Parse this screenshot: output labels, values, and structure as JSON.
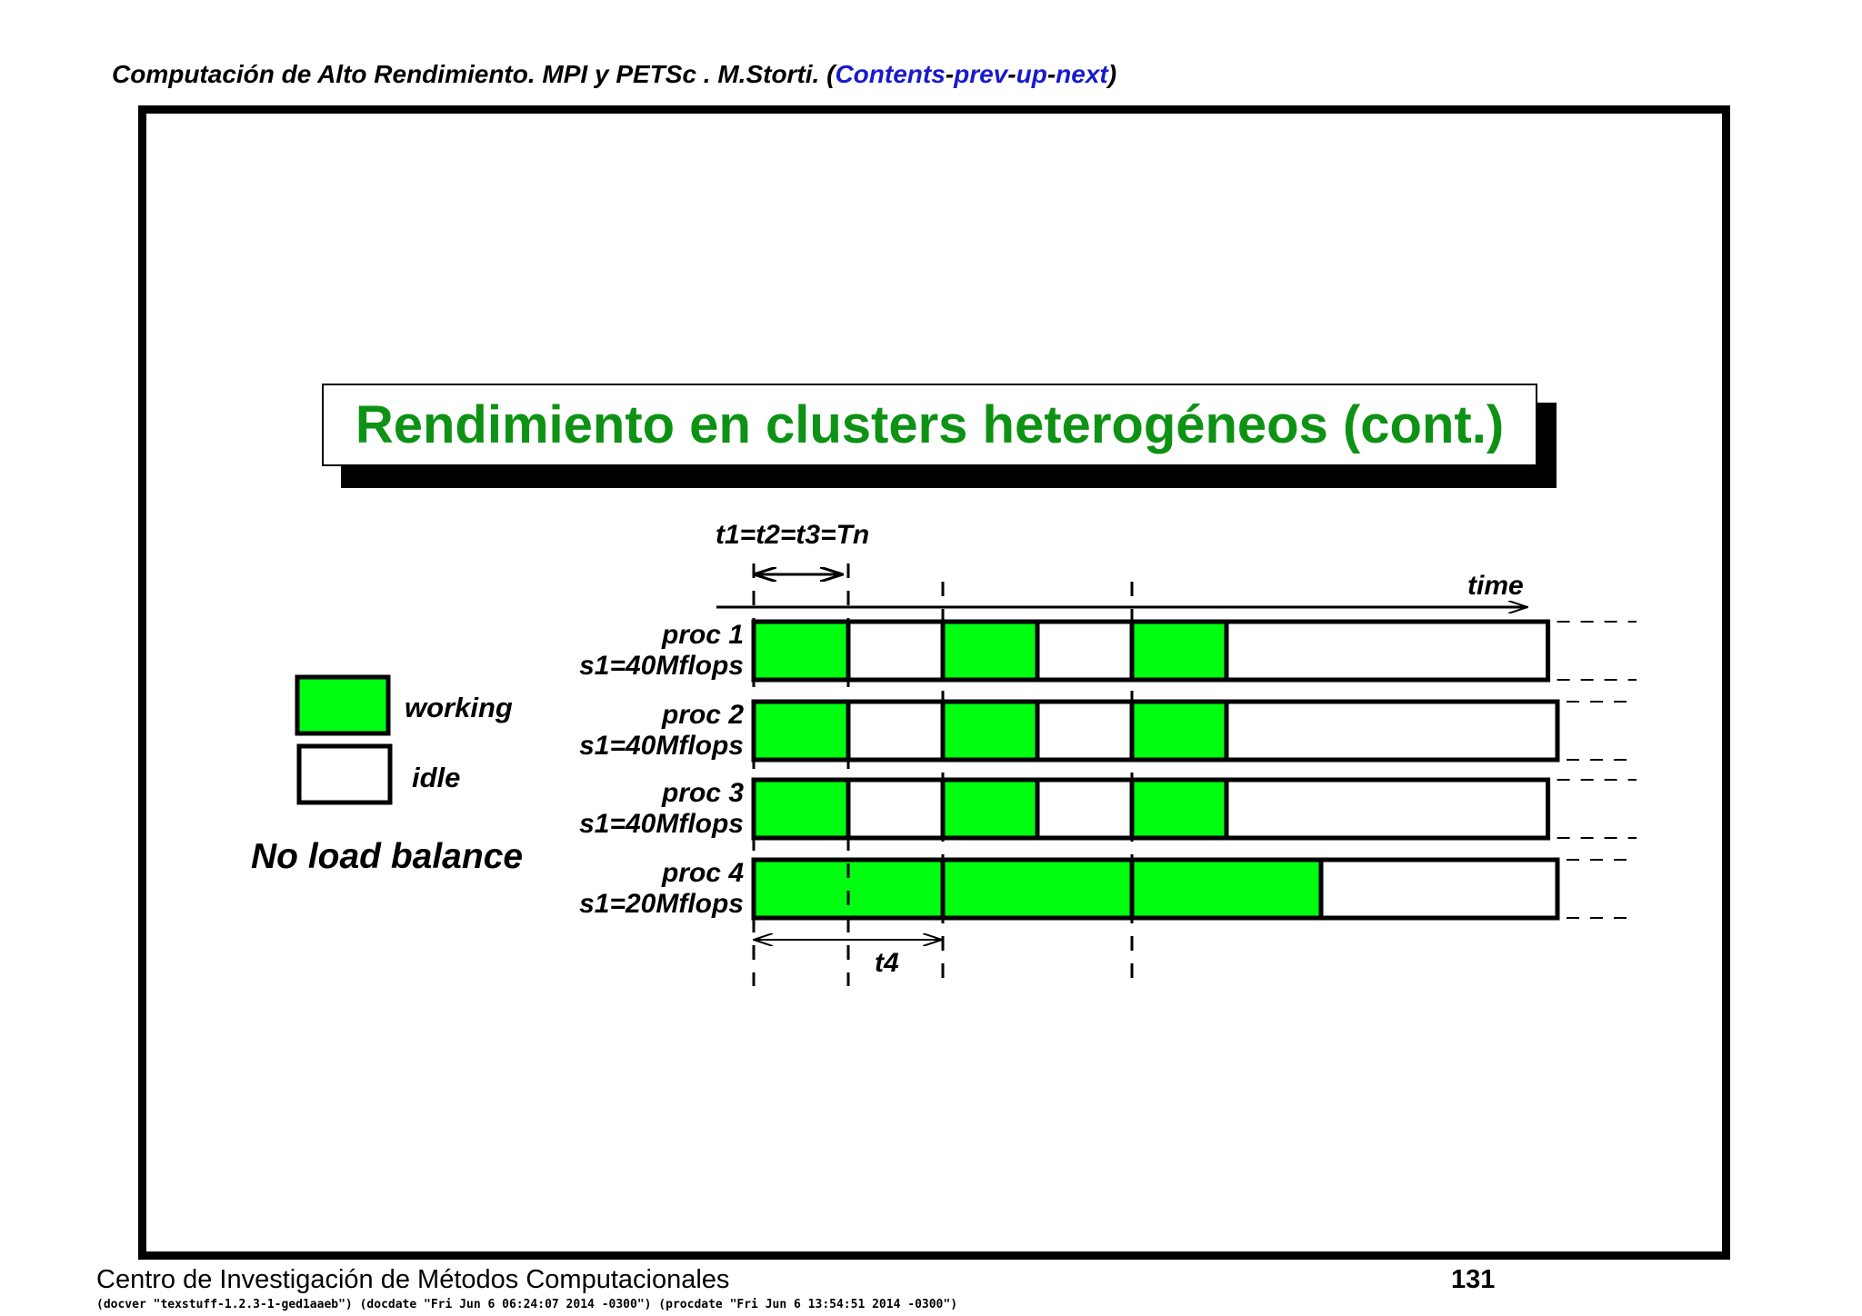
{
  "header": {
    "prefix": "Computación de Alto Rendimiento. MPI y PETSc . M.Storti. (",
    "links": [
      "Contents",
      "prev",
      "up",
      "next"
    ],
    "separator": "-",
    "suffix": ")"
  },
  "slide": {
    "title": "Rendimiento en clusters heterogéneos (cont.)"
  },
  "legend": {
    "working": "working",
    "idle": "idle",
    "caption": "No load balance"
  },
  "diagram": {
    "t_label": "t1=t2=t3=Tn",
    "time_label": "time",
    "t4_label": "t4",
    "colors": {
      "working": "#00ff10",
      "idle": "#ffffff"
    },
    "processes": [
      {
        "name": "proc 1",
        "speed": "s1=40Mflops",
        "segments": [
          [
            "working",
            0,
            1
          ],
          [
            "idle",
            1,
            2
          ],
          [
            "working",
            2,
            3
          ],
          [
            "idle",
            3,
            4
          ],
          [
            "working",
            4,
            5
          ],
          [
            "idle",
            5,
            8.4
          ]
        ]
      },
      {
        "name": "proc 2",
        "speed": "s1=40Mflops",
        "segments": [
          [
            "working",
            0,
            1
          ],
          [
            "idle",
            1,
            2
          ],
          [
            "working",
            2,
            3
          ],
          [
            "idle",
            3,
            4
          ],
          [
            "working",
            4,
            5
          ],
          [
            "idle",
            5,
            8.5
          ]
        ]
      },
      {
        "name": "proc 3",
        "speed": "s1=40Mflops",
        "segments": [
          [
            "working",
            0,
            1
          ],
          [
            "idle",
            1,
            2
          ],
          [
            "working",
            2,
            3
          ],
          [
            "idle",
            3,
            4
          ],
          [
            "working",
            4,
            5
          ],
          [
            "idle",
            5,
            8.4
          ]
        ]
      },
      {
        "name": "proc 4",
        "speed": "s1=20Mflops",
        "segments": [
          [
            "working",
            0,
            2
          ],
          [
            "working",
            2,
            4
          ],
          [
            "working",
            4,
            6
          ],
          [
            "idle",
            6,
            8.5
          ]
        ]
      }
    ]
  },
  "footer": {
    "institution": "Centro de Investigación de Métodos Computacionales",
    "page": "131",
    "meta": "(docver \"texstuff-1.2.3-1-ged1aaeb\") (docdate \"Fri Jun 6 06:24:07 2014 -0300\") (procdate \"Fri Jun 6 13:54:51 2014 -0300\")"
  }
}
